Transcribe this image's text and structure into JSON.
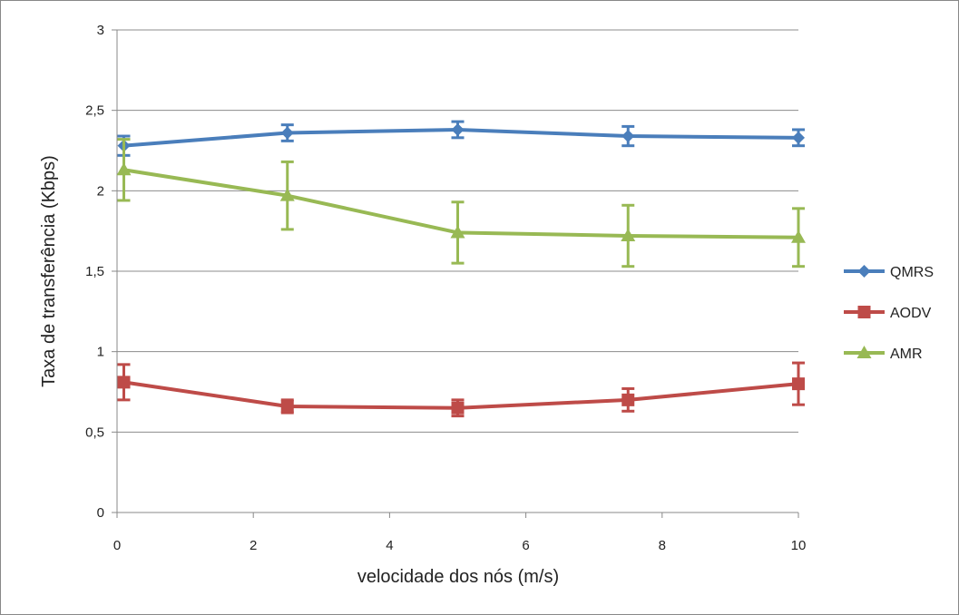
{
  "chart_data": {
    "type": "line",
    "title": "",
    "xlabel": "velocidade dos nós (m/s)",
    "ylabel": "Taxa de transferência (Kbps)",
    "xlim": [
      0,
      10
    ],
    "ylim": [
      0,
      3
    ],
    "x_ticks": [
      "0",
      "2",
      "4",
      "6",
      "8",
      "10"
    ],
    "x_tick_values": [
      0,
      2,
      4,
      6,
      8,
      10
    ],
    "y_ticks": [
      "0",
      "0,5",
      "1",
      "1,5",
      "2",
      "2,5",
      "3"
    ],
    "y_tick_values": [
      0,
      0.5,
      1,
      1.5,
      2,
      2.5,
      3
    ],
    "grid": "horizontal",
    "legend": "right",
    "x": [
      0.1,
      2.5,
      5,
      7.5,
      10
    ],
    "series": [
      {
        "name": "QMRS",
        "color": "#4a7ebb",
        "marker": "diamond",
        "values": [
          2.28,
          2.36,
          2.38,
          2.34,
          2.33
        ],
        "errors": [
          0.06,
          0.05,
          0.05,
          0.06,
          0.05
        ]
      },
      {
        "name": "AODV",
        "color": "#be4b48",
        "marker": "square",
        "values": [
          0.81,
          0.66,
          0.65,
          0.7,
          0.8
        ],
        "errors": [
          0.11,
          0.04,
          0.05,
          0.07,
          0.13
        ]
      },
      {
        "name": "AMR",
        "color": "#98b954",
        "marker": "triangle",
        "values": [
          2.13,
          1.97,
          1.74,
          1.72,
          1.71
        ],
        "errors": [
          0.19,
          0.21,
          0.19,
          0.19,
          0.18
        ]
      }
    ]
  }
}
